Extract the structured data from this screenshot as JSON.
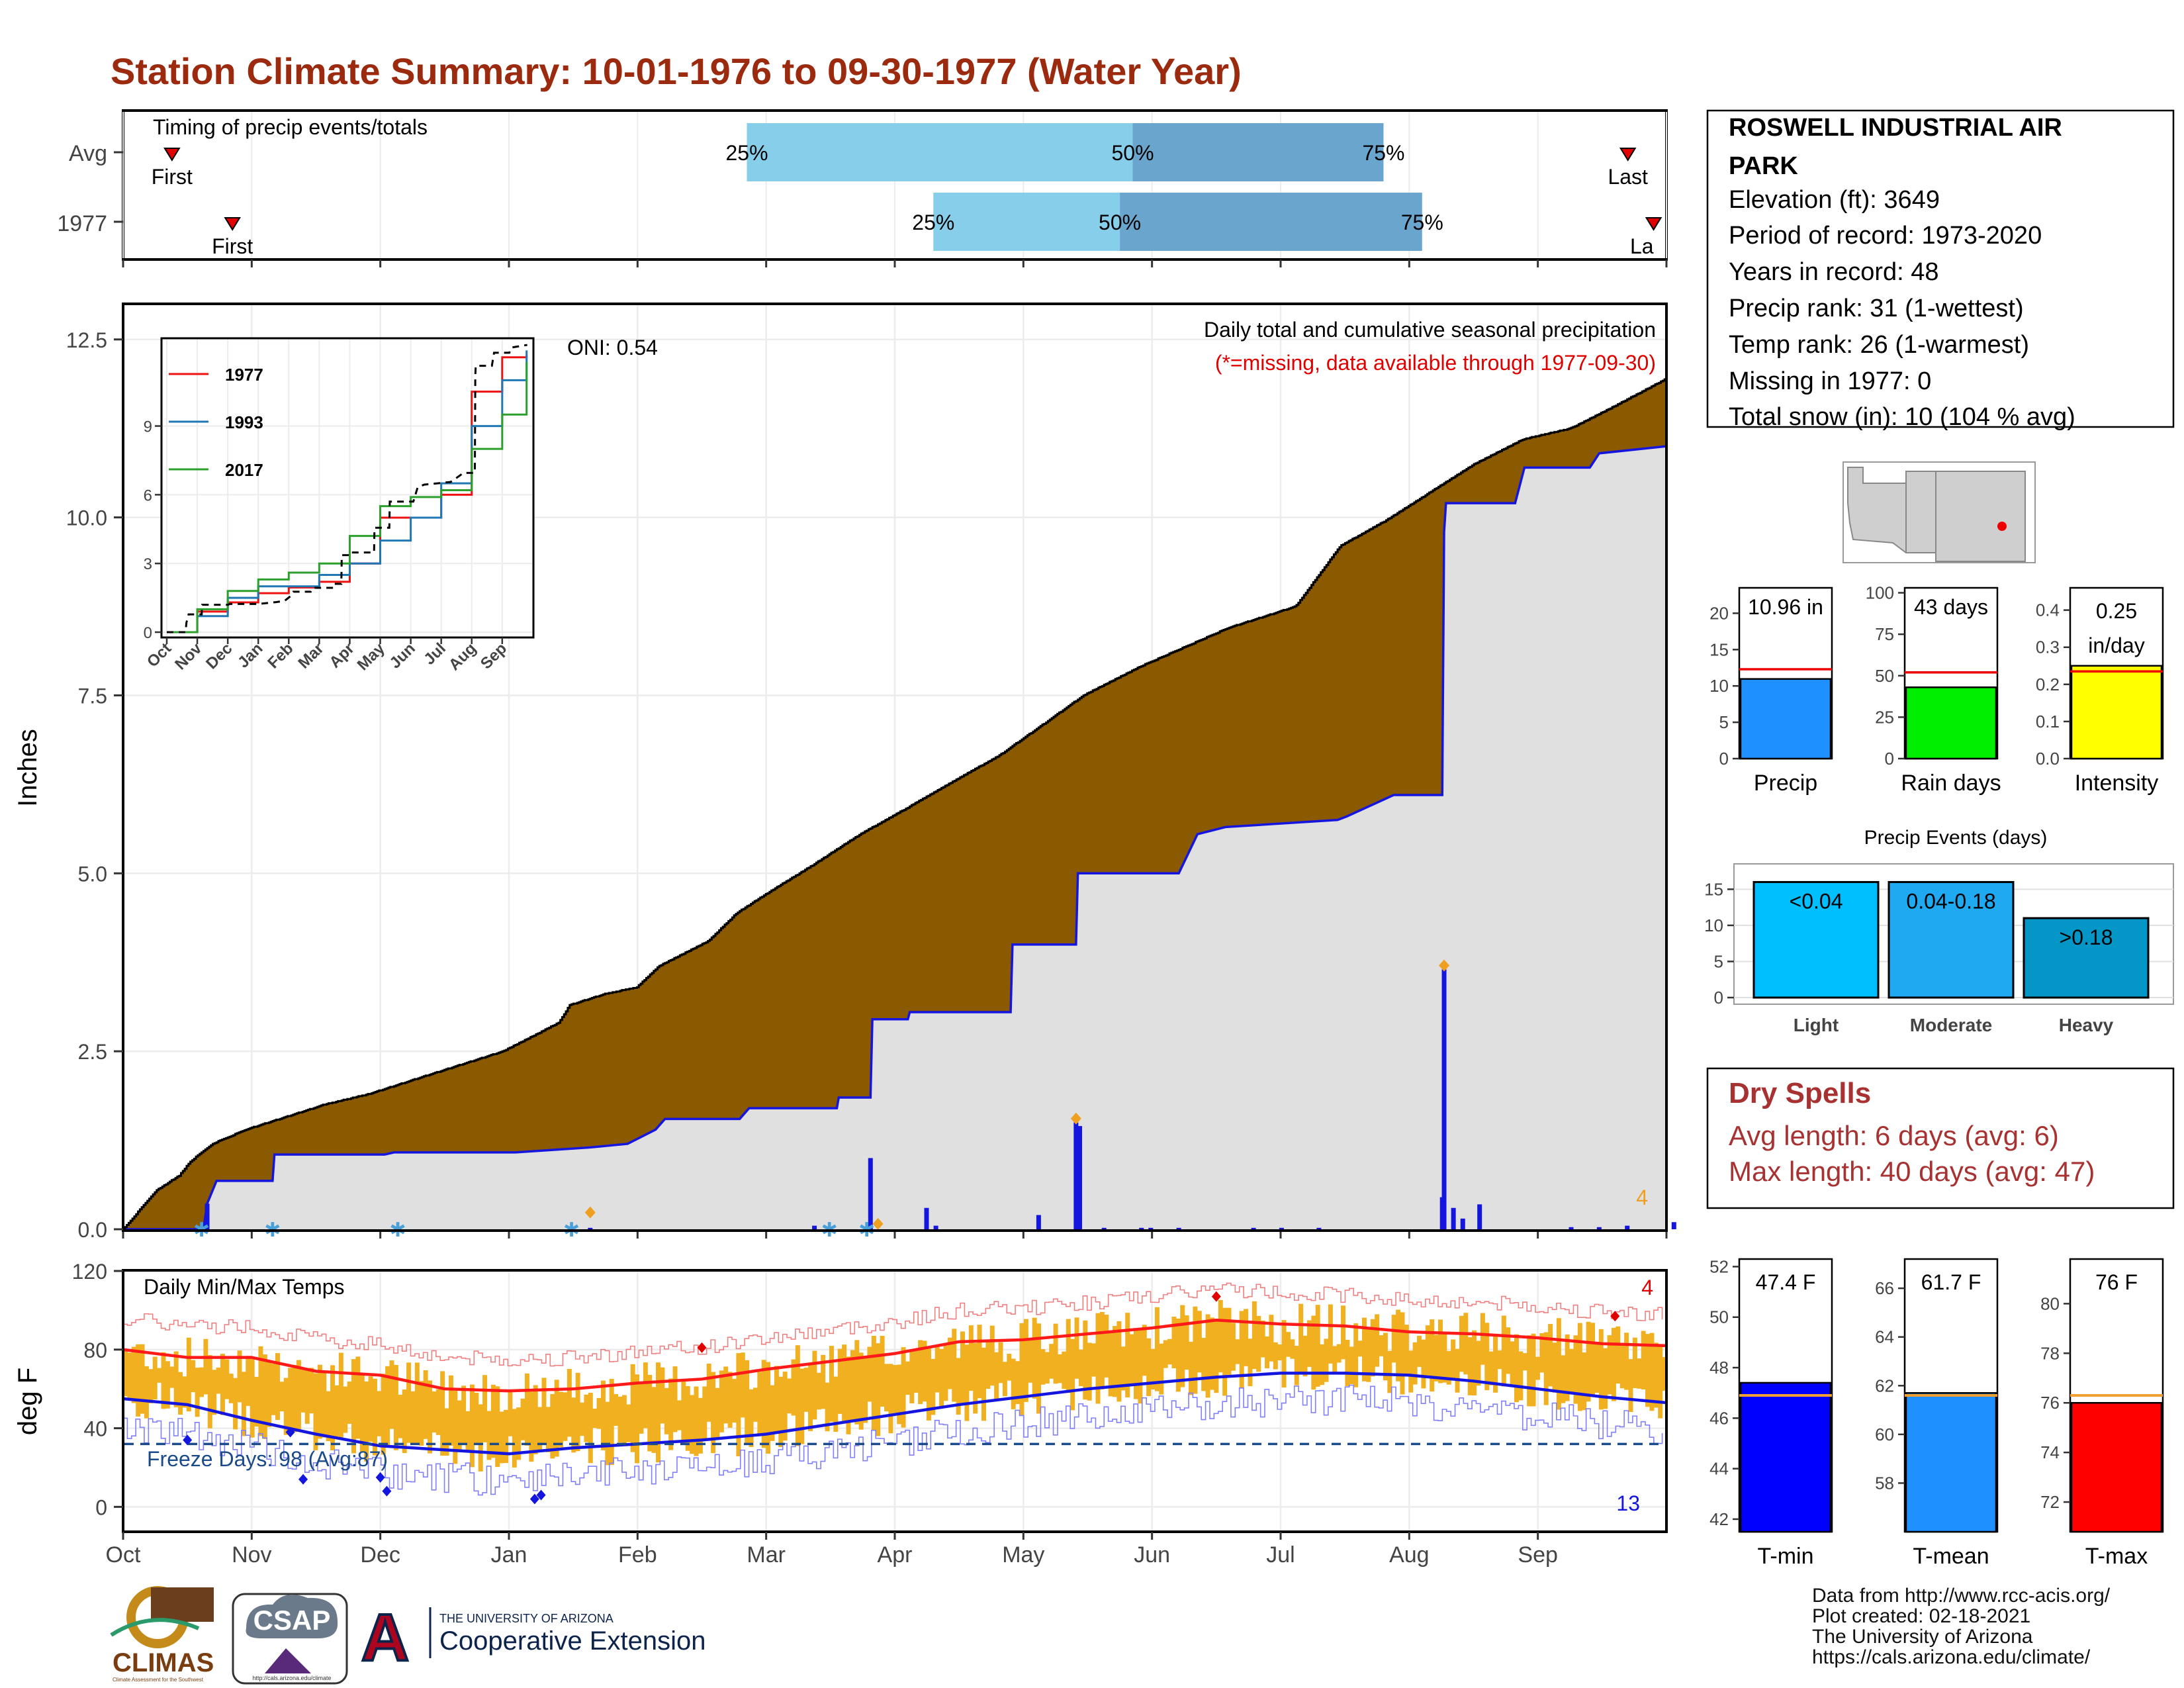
{
  "title": "Station Climate Summary: 10-01-1976 to 09-30-1977 (Water Year)",
  "colors": {
    "title": "#9b2a0e",
    "precip_brown": "#8b5a00",
    "precip_green": "#0a8a0a",
    "fill_gray": "#e0e0e0",
    "blue_line": "#1515e0",
    "temp_bar": "#f0b020",
    "tmax_line": "#ff1a1a",
    "tmin_line": "#1515e0",
    "light_blue": "#87ceeb",
    "mid_blue": "#6aa5cd",
    "dry_spell_red": "#a83232"
  },
  "timing_panel": {
    "label": "Timing of precip events/totals",
    "rows": [
      {
        "name": "Avg",
        "first_label": "First",
        "last_label": "Last",
        "first_month": 0.38,
        "last_month": 11.7,
        "p25": 4.85,
        "p50": 7.85,
        "p75": 9.8,
        "p25_label": "25%",
        "p50_label": "50%",
        "p75_label": "75%"
      },
      {
        "name": "1977",
        "first_label": "First",
        "last_label": "La",
        "first_month": 0.85,
        "last_month": 11.9,
        "p25": 6.3,
        "p50": 7.75,
        "p75": 10.1,
        "p25_label": "25%",
        "p50_label": "50%",
        "p75_label": "75%"
      }
    ]
  },
  "station_info": {
    "name_line1": "ROSWELL INDUSTRIAL AIR",
    "name_line2": "PARK",
    "elevation": "Elevation (ft): 3649",
    "period": "Period of record: 1973-2020",
    "years": "Years in record: 48",
    "precip_rank": "Precip rank: 31 (1-wettest)",
    "temp_rank": "Temp rank: 26 (1-warmest)",
    "missing": "Missing in 1977: 0",
    "snow": "Total snow (in): 10 (104 % avg)"
  },
  "precip_panel": {
    "ylabel": "Inches",
    "yticks": [
      "0.0",
      "2.5",
      "5.0",
      "7.5",
      "10.0",
      "12.5"
    ],
    "title_line1": "Daily total and cumulative seasonal precipitation",
    "title_line2": "(*=missing, data available through 1977-09-30)",
    "oni_label": "ONI: 0.54",
    "corner_count": "4"
  },
  "inset": {
    "legend": [
      "1977",
      "1993",
      "2017"
    ],
    "yticks": [
      "0",
      "3",
      "6",
      "9"
    ],
    "xticks": [
      "Oct",
      "Nov",
      "Dec",
      "Jan",
      "Feb",
      "Mar",
      "Apr",
      "May",
      "Jun",
      "Jul",
      "Aug",
      "Sep"
    ]
  },
  "temp_panel": {
    "ylabel": "deg F",
    "yticks": [
      "0",
      "40",
      "80",
      "120"
    ],
    "label": "Daily Min/Max Temps",
    "freeze_label": "Freeze Days: 98 (Avg:87)",
    "max_count": "4",
    "min_count": "13"
  },
  "months": [
    "Oct",
    "Nov",
    "Dec",
    "Jan",
    "Feb",
    "Mar",
    "Apr",
    "May",
    "Jun",
    "Jul",
    "Aug",
    "Sep"
  ],
  "summary_bars": {
    "precip": {
      "label": "Precip",
      "value_label": "10.96 in",
      "value": 10.96,
      "avg": 12.3,
      "yticks": [
        "0",
        "5",
        "10",
        "15",
        "20"
      ],
      "ymax": 23.5
    },
    "rain_days": {
      "label": "Rain days",
      "value_label": "43 days",
      "value": 43,
      "avg": 52,
      "yticks": [
        "0",
        "25",
        "50",
        "75",
        "100"
      ],
      "ymax": 103
    },
    "intensity": {
      "label": "Intensity",
      "value_label_1": "0.25",
      "value_label_2": "in/day",
      "value": 0.25,
      "avg": 0.235,
      "yticks": [
        "0.0",
        "0.1",
        "0.2",
        "0.3",
        "0.4"
      ],
      "ymax": 0.46
    }
  },
  "precip_events": {
    "title": "Precip Events (days)",
    "yticks": [
      "0",
      "5",
      "10",
      "15"
    ],
    "bars": [
      {
        "category": "Light",
        "label": "<0.04",
        "value": 16
      },
      {
        "category": "Moderate",
        "label": "0.04-0.18",
        "value": 16
      },
      {
        "category": "Heavy",
        "label": ">0.18",
        "value": 11
      }
    ]
  },
  "dry_spells": {
    "title": "Dry Spells",
    "avg_line": "Avg length: 6 days (avg: 6)",
    "max_line": "Max length: 40 days (avg: 47)"
  },
  "temp_bars": {
    "tmin": {
      "label": "T-min",
      "value_label": "47.4 F",
      "value": 47.4,
      "avg": 46.9,
      "yticks": [
        "42",
        "44",
        "46",
        "48",
        "50",
        "52"
      ],
      "ymin": 41.5,
      "ymax": 52.3
    },
    "tmean": {
      "label": "T-mean",
      "value_label": "61.7 F",
      "value": 61.7,
      "avg": 61.6,
      "yticks": [
        "58",
        "60",
        "62",
        "64",
        "66"
      ],
      "ymin": 56.0,
      "ymax": 67.2
    },
    "tmax": {
      "label": "T-max",
      "value_label": "76 F",
      "value": 76.0,
      "avg": 76.3,
      "yticks": [
        "72",
        "74",
        "76",
        "78",
        "80"
      ],
      "ymin": 70.8,
      "ymax": 81.8
    }
  },
  "footer": {
    "line1": "Data from http://www.rcc-acis.org/",
    "line2": "Plot created: 02-18-2021",
    "line3": "The University of Arizona",
    "line4": "https://cals.arizona.edu/climate/"
  },
  "logos": {
    "climas": "CLIMAS",
    "climas_sub": "Climate Assessment for the Southwest",
    "csap": "CSAP",
    "csap_url": "http://cals.arizona.edu/climate",
    "ua_letter": "A",
    "ua_line1": "THE UNIVERSITY OF ARIZONA",
    "ua_line2": "Cooperative Extension"
  },
  "chart_data": {
    "type": "area",
    "cumulative_precip_1977": [
      [
        0,
        0
      ],
      [
        15,
        0.55
      ],
      [
        25,
        0.75
      ],
      [
        30,
        0.95
      ],
      [
        40,
        1.2
      ],
      [
        55,
        1.4
      ],
      [
        70,
        1.55
      ],
      [
        90,
        1.75
      ],
      [
        110,
        1.9
      ],
      [
        140,
        2.2
      ],
      [
        170,
        2.5
      ],
      [
        195,
        2.9
      ],
      [
        200,
        3.15
      ],
      [
        215,
        3.3
      ],
      [
        230,
        3.4
      ],
      [
        240,
        3.7
      ],
      [
        262,
        4.05
      ],
      [
        275,
        4.45
      ],
      [
        295,
        4.85
      ],
      [
        308,
        5.1
      ],
      [
        330,
        5.55
      ],
      [
        350,
        5.9
      ],
      [
        372,
        6.3
      ],
      [
        392,
        6.65
      ],
      [
        410,
        7.05
      ],
      [
        430,
        7.5
      ],
      [
        455,
        7.9
      ],
      [
        495,
        8.45
      ],
      [
        525,
        8.75
      ],
      [
        545,
        9.6
      ],
      [
        565,
        9.95
      ],
      [
        585,
        10.35
      ],
      [
        605,
        10.75
      ],
      [
        627,
        11.1
      ],
      [
        648,
        11.25
      ],
      [
        667,
        11.55
      ],
      [
        691,
        11.95
      ]
    ],
    "cumulative_precip_avg": [
      [
        0,
        0
      ],
      [
        43,
        0
      ],
      [
        45,
        0.36
      ],
      [
        50,
        0.68
      ],
      [
        80,
        0.68
      ],
      [
        81,
        1.05
      ],
      [
        140,
        1.05
      ],
      [
        145,
        1.08
      ],
      [
        210,
        1.08
      ],
      [
        250,
        1.15
      ],
      [
        270,
        1.2
      ],
      [
        285,
        1.4
      ],
      [
        290,
        1.55
      ],
      [
        330,
        1.55
      ],
      [
        335,
        1.7
      ],
      [
        382,
        1.7
      ],
      [
        383,
        1.85
      ],
      [
        400,
        1.85
      ],
      [
        401,
        2.95
      ],
      [
        420,
        2.95
      ],
      [
        421,
        3.05
      ],
      [
        475,
        3.05
      ],
      [
        476,
        4.0
      ],
      [
        510,
        4.0
      ],
      [
        511,
        5.0
      ],
      [
        565,
        5.0
      ],
      [
        575,
        5.55
      ],
      [
        590,
        5.65
      ],
      [
        650,
        5.75
      ],
      [
        655,
        5.8
      ],
      [
        680,
        6.1
      ],
      [
        706,
        6.1
      ],
      [
        707,
        9.8
      ],
      [
        708,
        10.2
      ],
      [
        745,
        10.2
      ],
      [
        750,
        10.7
      ],
      [
        785,
        10.7
      ],
      [
        790,
        10.9
      ],
      [
        826,
        11.0
      ]
    ],
    "daily_precip_ticks": [
      [
        45,
        0.36
      ],
      [
        80,
        0.02
      ],
      [
        250,
        0.02
      ],
      [
        370,
        0.05
      ],
      [
        400,
        1.0
      ],
      [
        430,
        0.3
      ],
      [
        435,
        0.05
      ],
      [
        490,
        0.2
      ],
      [
        510,
        1.5
      ],
      [
        512,
        1.45
      ],
      [
        525,
        0.02
      ],
      [
        545,
        0.02
      ],
      [
        550,
        0.02
      ],
      [
        565,
        0.02
      ],
      [
        605,
        0.02
      ],
      [
        620,
        0.02
      ],
      [
        640,
        0.02
      ],
      [
        706,
        0.45
      ],
      [
        707,
        3.65
      ],
      [
        712,
        0.3
      ],
      [
        717,
        0.15
      ],
      [
        726,
        0.35
      ],
      [
        775,
        0.03
      ],
      [
        790,
        0.03
      ],
      [
        805,
        0.05
      ],
      [
        830,
        0.1
      ]
    ],
    "inset_series": [
      {
        "name": "1977",
        "months": [
          0,
          1,
          2,
          3,
          4,
          5,
          6,
          7,
          8,
          9,
          10,
          11,
          11.8
        ],
        "values": [
          0,
          0.9,
          1.3,
          1.7,
          1.95,
          2.2,
          3.0,
          5.0,
          5.0,
          6.0,
          10.5,
          12.0,
          12.1
        ]
      },
      {
        "name": "1993",
        "months": [
          0,
          1,
          2,
          3,
          4,
          5,
          6,
          7,
          8,
          9,
          10,
          11,
          11.8
        ],
        "values": [
          0,
          0.7,
          1.5,
          2.0,
          2.0,
          2.5,
          3.0,
          4.0,
          5.0,
          6.5,
          9.0,
          11.0,
          12.3
        ]
      },
      {
        "name": "2017",
        "months": [
          0,
          1,
          2,
          3,
          4,
          5,
          6,
          7,
          8,
          9,
          10,
          11,
          11.8
        ],
        "values": [
          0,
          1.0,
          1.8,
          2.3,
          2.6,
          3.0,
          4.2,
          5.5,
          5.9,
          6.2,
          8.0,
          9.5,
          11.8
        ]
      }
    ],
    "tmax_smooth": [
      [
        0,
        80
      ],
      [
        0.5,
        76
      ],
      [
        1,
        76
      ],
      [
        1.5,
        69
      ],
      [
        2,
        67
      ],
      [
        2.5,
        60
      ],
      [
        3,
        59
      ],
      [
        3.5,
        60
      ],
      [
        4,
        63
      ],
      [
        4.5,
        65
      ],
      [
        5,
        70
      ],
      [
        5.5,
        74
      ],
      [
        6,
        78
      ],
      [
        6.5,
        84
      ],
      [
        7,
        85
      ],
      [
        7.5,
        88
      ],
      [
        8,
        91
      ],
      [
        8.5,
        95
      ],
      [
        9,
        93
      ],
      [
        9.5,
        92
      ],
      [
        10,
        89
      ],
      [
        10.5,
        88
      ],
      [
        11,
        86
      ],
      [
        11.5,
        83
      ],
      [
        12,
        82
      ]
    ],
    "tmin_smooth": [
      [
        0,
        55
      ],
      [
        0.5,
        52
      ],
      [
        1,
        44
      ],
      [
        1.5,
        37
      ],
      [
        2,
        31
      ],
      [
        2.5,
        29
      ],
      [
        3,
        27
      ],
      [
        3.5,
        30
      ],
      [
        4,
        32
      ],
      [
        4.5,
        34
      ],
      [
        5,
        37
      ],
      [
        5.5,
        42
      ],
      [
        6,
        47
      ],
      [
        6.5,
        52
      ],
      [
        7,
        56
      ],
      [
        7.5,
        60
      ],
      [
        8,
        63
      ],
      [
        8.5,
        66
      ],
      [
        9,
        68
      ],
      [
        9.5,
        68
      ],
      [
        10,
        67
      ],
      [
        10.5,
        64
      ],
      [
        11,
        60
      ],
      [
        11.5,
        56
      ],
      [
        12,
        53
      ]
    ],
    "freeze_line": 32,
    "temp_ymin": -12,
    "temp_ymax": 120,
    "precip_ymax": 13.0
  }
}
